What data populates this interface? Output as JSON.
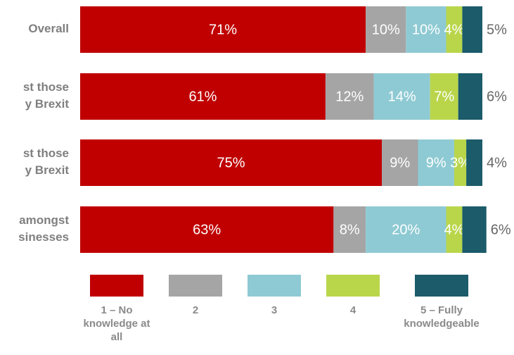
{
  "chart_data": {
    "type": "stacked-bar-horizontal",
    "categories": [
      [
        "Overall"
      ],
      [
        "st those",
        "y Brexit"
      ],
      [
        "st those",
        "y Brexit"
      ],
      [
        "amongst",
        "sinesses"
      ]
    ],
    "xlim": [
      0,
      100
    ],
    "series": [
      {
        "name": "1 – No knowledge at all",
        "color": "#c00000",
        "values": [
          71,
          61,
          75,
          63
        ],
        "value_labels": [
          "71%",
          "61%",
          "75%",
          "63%"
        ]
      },
      {
        "name": "2",
        "color": "#a5a5a5",
        "values": [
          10,
          12,
          9,
          8
        ],
        "value_labels": [
          "10%",
          "12%",
          "9%",
          "8%"
        ]
      },
      {
        "name": "3",
        "color": "#8ecad3",
        "values": [
          10,
          14,
          9,
          20
        ],
        "value_labels": [
          "10%",
          "14%",
          "9%",
          "20%"
        ]
      },
      {
        "name": "4",
        "color": "#b9d64b",
        "values": [
          4,
          7,
          3,
          4
        ],
        "value_labels": [
          "4%",
          "7%",
          "3%",
          "4%"
        ]
      },
      {
        "name": "5 – Fully knowledgeable",
        "color": "#1b5b6a",
        "values": [
          5,
          6,
          4,
          6
        ],
        "value_labels": [
          "5%",
          "6%",
          "4%",
          "6%"
        ]
      }
    ]
  }
}
